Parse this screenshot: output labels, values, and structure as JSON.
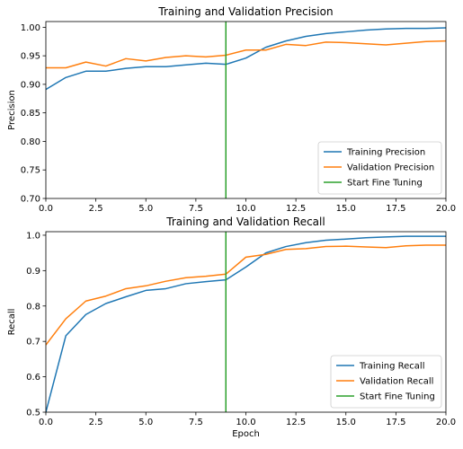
{
  "chart_data": [
    {
      "type": "line",
      "title": "Training and Validation Precision",
      "xlabel": "",
      "ylabel": "Precision",
      "xlim": [
        0,
        20
      ],
      "ylim": [
        0.7,
        1.01
      ],
      "x": [
        0,
        1,
        2,
        3,
        4,
        5,
        6,
        7,
        8,
        9,
        10,
        11,
        12,
        13,
        14,
        15,
        16,
        17,
        18,
        19,
        20
      ],
      "xticks": [
        "0.0",
        "2.5",
        "5.0",
        "7.5",
        "10.0",
        "12.5",
        "15.0",
        "17.5",
        "20.0"
      ],
      "yticks": [
        "0.70",
        "0.75",
        "0.80",
        "0.85",
        "0.90",
        "0.95",
        "1.00"
      ],
      "legend_position": "lower-right",
      "series": [
        {
          "name": "Training Precision",
          "color": "#1f77b4",
          "values": [
            0.891,
            0.912,
            0.923,
            0.923,
            0.928,
            0.931,
            0.931,
            0.934,
            0.937,
            0.935,
            0.946,
            0.965,
            0.976,
            0.984,
            0.989,
            0.992,
            0.995,
            0.997,
            0.998,
            0.998,
            0.999
          ]
        },
        {
          "name": "Validation Precision",
          "color": "#ff7f0e",
          "values": [
            0.929,
            0.929,
            0.939,
            0.932,
            0.945,
            0.941,
            0.947,
            0.95,
            0.948,
            0.951,
            0.96,
            0.96,
            0.97,
            0.968,
            0.974,
            0.973,
            0.971,
            0.969,
            0.972,
            0.975,
            0.976
          ]
        }
      ],
      "vline": {
        "name": "Start Fine Tuning",
        "x": 9,
        "color": "#2ca02c"
      }
    },
    {
      "type": "line",
      "title": "Training and Validation Recall",
      "xlabel": "Epoch",
      "ylabel": "Recall",
      "xlim": [
        0,
        20
      ],
      "ylim": [
        0.5,
        1.01
      ],
      "x": [
        0,
        1,
        2,
        3,
        4,
        5,
        6,
        7,
        8,
        9,
        10,
        11,
        12,
        13,
        14,
        15,
        16,
        17,
        18,
        19,
        20
      ],
      "xticks": [
        "0.0",
        "2.5",
        "5.0",
        "7.5",
        "10.0",
        "12.5",
        "15.0",
        "17.5",
        "20.0"
      ],
      "yticks": [
        "0.5",
        "0.6",
        "0.7",
        "0.8",
        "0.9",
        "1.0"
      ],
      "legend_position": "lower-right",
      "series": [
        {
          "name": "Training Recall",
          "color": "#1f77b4",
          "values": [
            0.5,
            0.716,
            0.776,
            0.807,
            0.826,
            0.844,
            0.849,
            0.863,
            0.869,
            0.874,
            0.91,
            0.95,
            0.968,
            0.979,
            0.986,
            0.989,
            0.993,
            0.995,
            0.997,
            0.997,
            0.997
          ]
        },
        {
          "name": "Validation Recall",
          "color": "#ff7f0e",
          "values": [
            0.69,
            0.764,
            0.814,
            0.828,
            0.849,
            0.857,
            0.87,
            0.88,
            0.884,
            0.89,
            0.938,
            0.946,
            0.96,
            0.962,
            0.968,
            0.969,
            0.967,
            0.965,
            0.97,
            0.972,
            0.972
          ]
        }
      ],
      "vline": {
        "name": "Start Fine Tuning",
        "x": 9,
        "color": "#2ca02c"
      }
    }
  ]
}
